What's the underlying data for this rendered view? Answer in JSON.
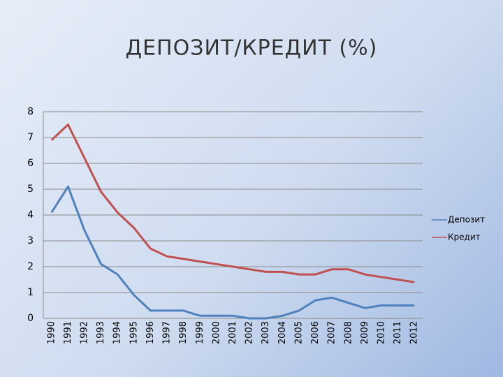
{
  "chart_data": {
    "type": "line",
    "title": "ДЕПОЗИТ/КРЕДИТ (%)",
    "categories": [
      "1990",
      "1991",
      "1992",
      "1993",
      "1994",
      "1995",
      "1996",
      "1997",
      "1998",
      "1999",
      "2000",
      "2001",
      "2002",
      "2003",
      "2004",
      "2005",
      "2006",
      "2007",
      "2008",
      "2009",
      "2010",
      "2011",
      "2012"
    ],
    "series": [
      {
        "name": "Депозит",
        "color": "#4f81bd",
        "values": [
          4.1,
          5.1,
          3.4,
          2.1,
          1.7,
          0.9,
          0.3,
          0.3,
          0.3,
          0.1,
          0.1,
          0.1,
          0.0,
          0.0,
          0.1,
          0.3,
          0.7,
          0.8,
          0.6,
          0.4,
          0.5,
          0.5,
          0.5
        ]
      },
      {
        "name": "Кредит",
        "color": "#c0504d",
        "values": [
          6.9,
          7.5,
          6.2,
          4.9,
          4.1,
          3.5,
          2.7,
          2.4,
          2.3,
          2.2,
          2.1,
          2.0,
          1.9,
          1.8,
          1.8,
          1.7,
          1.7,
          1.9,
          1.9,
          1.7,
          1.6,
          1.5,
          1.4
        ]
      }
    ],
    "ylim": [
      0,
      8
    ],
    "yticks": [
      0,
      1,
      2,
      3,
      4,
      5,
      6,
      7,
      8
    ],
    "grid": true,
    "legend": "right"
  }
}
